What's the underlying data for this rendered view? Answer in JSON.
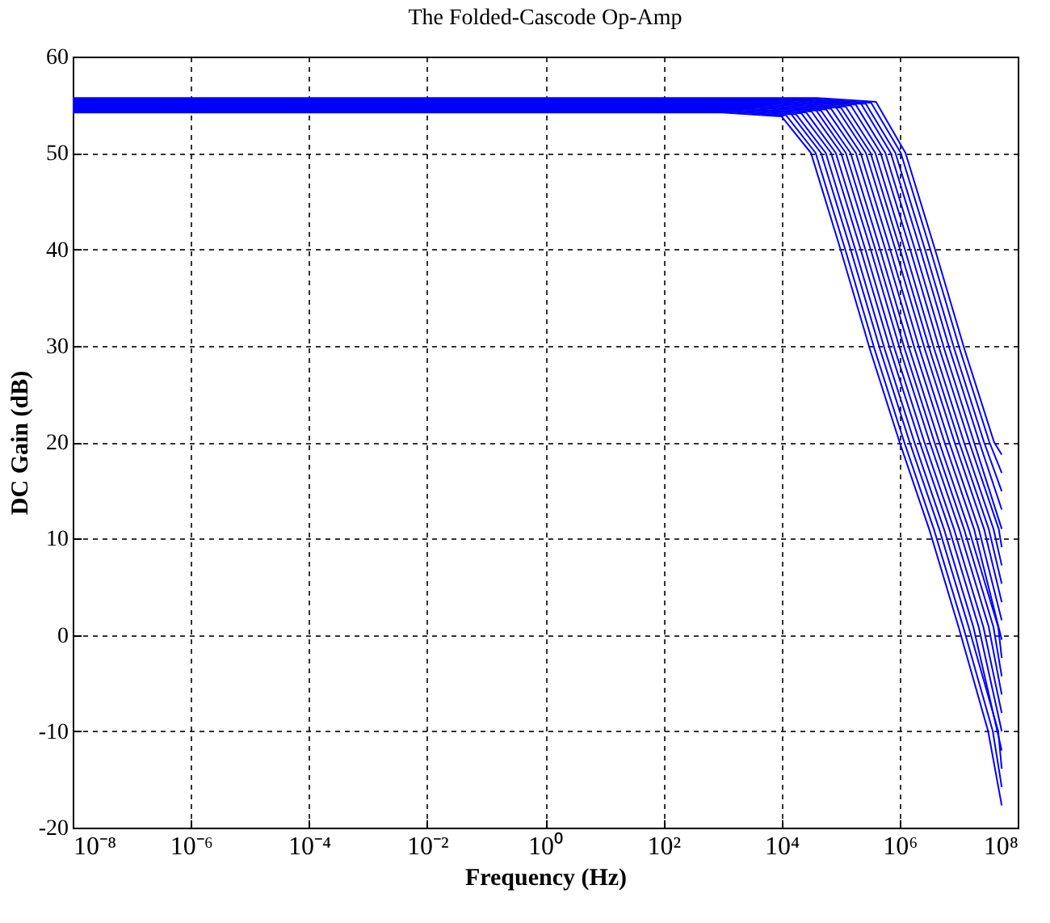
{
  "chart_data": {
    "type": "line",
    "title": "The Folded-Cascode Op-Amp",
    "xlabel": "Frequency (Hz)",
    "ylabel": "DC Gain (dB)",
    "log": "x",
    "grid": true,
    "legend": false,
    "xlim": [
      1e-08,
      100000000.0
    ],
    "ylim": [
      -20,
      60
    ],
    "xticks": [
      {
        "value": 1e-08,
        "label": "10⁻⁸"
      },
      {
        "value": 1e-06,
        "label": "10⁻⁶"
      },
      {
        "value": 0.0001,
        "label": "10⁻⁴"
      },
      {
        "value": 0.01,
        "label": "10⁻²"
      },
      {
        "value": 1,
        "label": "10⁰"
      },
      {
        "value": 100,
        "label": "10²"
      },
      {
        "value": 10000.0,
        "label": "10⁴"
      },
      {
        "value": 1000000.0,
        "label": "10⁶"
      },
      {
        "value": 100000000.0,
        "label": "10⁸"
      }
    ],
    "yticks": [
      -20,
      -10,
      0,
      10,
      20,
      30,
      40,
      50,
      60
    ],
    "series": [
      {
        "color": "#0000ff",
        "x": [
          1e-08,
          1000.0,
          10000.0,
          31600.0,
          100000.0,
          316000.0,
          1000000.0,
          3160000.0,
          10000000.0,
          31600000.0,
          53700000.0
        ],
        "values": [
          54.2,
          54.2,
          53.8,
          50,
          40,
          29.6,
          20,
          11,
          0.8,
          -10,
          -17.7
        ]
      },
      {
        "color": "#0000ff",
        "x": [
          1e-08,
          1200.0,
          12000.0,
          37900.0,
          120000.0,
          379000.0,
          1200000.0,
          3790000.0,
          12000000.0,
          37900000.0,
          53700000.0
        ],
        "values": [
          54.3,
          54.3,
          53.9,
          50,
          40,
          29.6,
          20,
          11,
          0.8,
          -10,
          -15.8
        ]
      },
      {
        "color": "#0000ff",
        "x": [
          1e-08,
          1480.0,
          14800.0,
          46800.0,
          148000.0,
          468000.0,
          1480000.0,
          4680000.0,
          14800000.0,
          46800000.0,
          53700000.0
        ],
        "values": [
          54.4,
          54.4,
          54,
          50,
          40,
          29.6,
          20,
          11,
          0.8,
          -10,
          -13.9
        ]
      },
      {
        "color": "#0000ff",
        "x": [
          1e-08,
          1780.0,
          17800.0,
          56300.0,
          178000.0,
          563000.0,
          1780000.0,
          5630000.0,
          17800000.0,
          53700000.0
        ],
        "values": [
          54.4,
          54.4,
          54,
          50,
          40,
          29.6,
          20,
          11,
          0.8,
          -12
        ]
      },
      {
        "color": "#0000ff",
        "x": [
          1e-08,
          2190.0,
          21900.0,
          69200.0,
          219000.0,
          692000.0,
          2190000.0,
          6920000.0,
          21900000.0,
          53700000.0
        ],
        "values": [
          54.5,
          54.5,
          54.1,
          50,
          40,
          29.6,
          20,
          11,
          0.8,
          -10
        ]
      },
      {
        "color": "#0000ff",
        "x": [
          1e-08,
          2630.0,
          26300.0,
          83200.0,
          263000.0,
          832000.0,
          2630000.0,
          8320000.0,
          26300000.0,
          53700000.0
        ],
        "values": [
          54.6,
          54.6,
          54.2,
          50,
          40,
          29.6,
          20,
          11,
          0.8,
          -8.1
        ]
      },
      {
        "color": "#0000ff",
        "x": [
          1e-08,
          3240.0,
          32400.0,
          102000.0,
          324000.0,
          1020000.0,
          3240000.0,
          10200000.0,
          32400000.0,
          53700000.0
        ],
        "values": [
          54.7,
          54.7,
          54.3,
          50,
          40,
          29.6,
          20,
          11,
          0.8,
          -6.2
        ]
      },
      {
        "color": "#0000ff",
        "x": [
          1e-08,
          3890.0,
          38900.0,
          123000.0,
          389000.0,
          1230000.0,
          3890000.0,
          12300000.0,
          38900000.0,
          53700000.0
        ],
        "values": [
          54.8,
          54.8,
          54.4,
          50,
          40,
          29.6,
          20,
          11,
          0.8,
          -4.3
        ]
      },
      {
        "color": "#0000ff",
        "x": [
          1e-08,
          4680.0,
          46800.0,
          148000.0,
          468000.0,
          1480000.0,
          4680000.0,
          14800000.0,
          46800000.0,
          53700000.0
        ],
        "values": [
          54.8,
          54.8,
          54.4,
          50,
          40,
          29.6,
          20,
          11,
          0.8,
          -2.4
        ]
      },
      {
        "color": "#0000ff",
        "x": [
          1e-08,
          5750.0,
          57500.0,
          182000.0,
          575000.0,
          1820000.0,
          5750000.0,
          18200000.0,
          53700000.0
        ],
        "values": [
          54.9,
          54.9,
          54.5,
          50,
          40,
          29.6,
          20,
          11,
          -0.5
        ]
      },
      {
        "color": "#0000ff",
        "x": [
          1e-08,
          6920.0,
          69200.0,
          219000.0,
          692000.0,
          2190000.0,
          6920000.0,
          21900000.0,
          53700000.0
        ],
        "values": [
          55,
          55,
          54.6,
          50,
          40,
          29.6,
          20,
          11,
          1.5
        ]
      },
      {
        "color": "#0000ff",
        "x": [
          1e-08,
          8510.0,
          85100.0,
          269000.0,
          851000.0,
          2690000.0,
          8510000.0,
          26900000.0,
          53700000.0
        ],
        "values": [
          55.1,
          55.1,
          54.7,
          50,
          40,
          29.6,
          20,
          11,
          3.4
        ]
      },
      {
        "color": "#0000ff",
        "x": [
          1e-08,
          10200.0,
          102000.0,
          323000.0,
          1020000.0,
          3230000.0,
          10200000.0,
          32300000.0,
          53700000.0
        ],
        "values": [
          55.1,
          55.1,
          54.7,
          50,
          40,
          29.6,
          20,
          11,
          5.3
        ]
      },
      {
        "color": "#0000ff",
        "x": [
          1e-08,
          12300.0,
          123000.0,
          389000.0,
          1230000.0,
          3890000.0,
          12300000.0,
          38900000.0,
          53700000.0
        ],
        "values": [
          55.2,
          55.2,
          54.8,
          50,
          40,
          29.6,
          20,
          11,
          7.2
        ]
      },
      {
        "color": "#0000ff",
        "x": [
          1e-08,
          15100.0,
          151000.0,
          477000.0,
          1510000.0,
          4770000.0,
          15100000.0,
          47700000.0,
          53700000.0
        ],
        "values": [
          55.3,
          55.3,
          54.9,
          50,
          40,
          29.6,
          20,
          11,
          9.1
        ]
      },
      {
        "color": "#0000ff",
        "x": [
          1e-08,
          18200.0,
          182000.0,
          575000.0,
          1820000.0,
          5750000.0,
          18200000.0,
          53700000.0
        ],
        "values": [
          55.4,
          55.4,
          55,
          50,
          40,
          29.6,
          20,
          11
        ]
      },
      {
        "color": "#0000ff",
        "x": [
          1e-08,
          22400.0,
          224000.0,
          708000.0,
          2240000.0,
          7080000.0,
          22400000.0,
          53700000.0
        ],
        "values": [
          55.5,
          55.5,
          55.1,
          50,
          40,
          29.6,
          20,
          13
        ]
      },
      {
        "color": "#0000ff",
        "x": [
          1e-08,
          26900.0,
          269000.0,
          851000.0,
          2690000.0,
          8510000.0,
          26900000.0,
          53700000.0
        ],
        "values": [
          55.5,
          55.5,
          55.1,
          50,
          40,
          29.6,
          20,
          14.9
        ]
      },
      {
        "color": "#0000ff",
        "x": [
          1e-08,
          33100.0,
          331000.0,
          1050000.0,
          3310000.0,
          10500000.0,
          33100000.0,
          53700000.0
        ],
        "values": [
          55.6,
          55.6,
          55.2,
          50,
          40,
          29.6,
          20,
          16.8
        ]
      },
      {
        "color": "#0000ff",
        "x": [
          1e-08,
          39800.0,
          398000.0,
          1260000.0,
          3980000.0,
          12600000.0,
          39800000.0,
          53700000.0
        ],
        "values": [
          55.7,
          55.7,
          55.3,
          50,
          40,
          29.6,
          20,
          18.7
        ]
      }
    ]
  }
}
